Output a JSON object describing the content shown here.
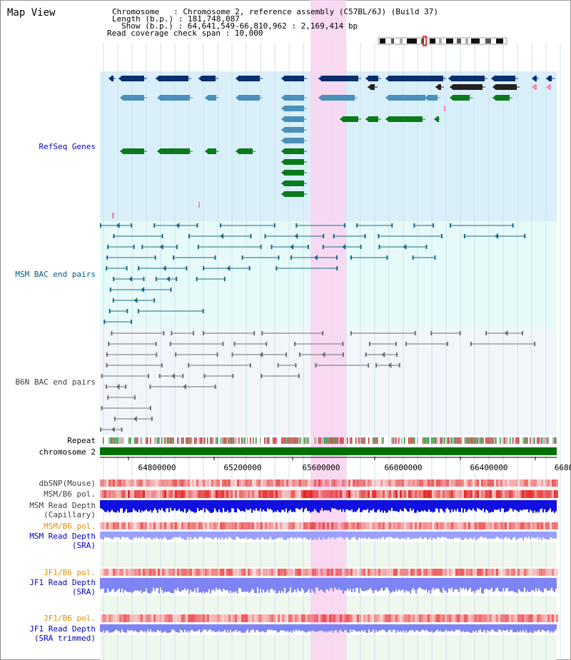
{
  "title": "Map View",
  "info": {
    "chromosome_line": "Chromosome   : Chromosome 2, reference assembly (C57BL/6J) (Build 37)",
    "length_line": "Length (b.p.) : 181,748,087",
    "show_line": "Show (b.p.) : 64,641,549-66,810,962 : 2,169,414 bp",
    "coverage_line": "Read coverage check span : 10,000"
  },
  "tracks": {
    "refseq": "RefSeq Genes",
    "msm_bac": "MSM BAC end pairs",
    "b6n_bac": "B6N BAC end pairs",
    "repeat": "Repeat",
    "chrom": "chromosome 2",
    "dbsnp": "dbSNP(Mouse)",
    "msm_b6_pol": "MSM/B6 pol.",
    "msm_depth_cap_1": "MSM Read Depth",
    "msm_depth_cap_2": "(Capillary)",
    "msm_b6_pol_2": "MSM/B6 pol.",
    "msm_depth_sra_1": "MSM Read Depth",
    "msm_depth_sra_2": "(SRA)",
    "jf1_pol_1": "JF1/B6 pol.",
    "jf1_depth_1": "JF1 Read Depth",
    "jf1_depth_2": "(SRA)",
    "jf1_pol_2": "JF1/B6 pol.",
    "jf1_trim_1": "JF1 Read Depth",
    "jf1_trim_2": "(SRA trimmed)"
  },
  "axis": {
    "ticks": [
      "64800000",
      "65200000",
      "65600000",
      "66000000",
      "66400000",
      "6680"
    ]
  },
  "colors": {
    "label_blue": "#0000c0",
    "label_teal": "#006080",
    "label_gray": "#404040",
    "label_orange": "#e09000",
    "highlight": "#f9d4f0",
    "refseq_bg": "#d9effa",
    "msm_bg": "#e6fafa",
    "b6n_bg": "#f2f6fa"
  }
}
